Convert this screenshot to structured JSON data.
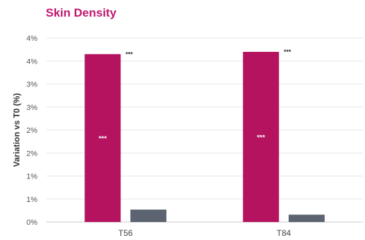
{
  "chart_data": {
    "type": "bar",
    "title": "Skin Density",
    "ylabel": "Variation vs T0 (%)",
    "xlabel": "",
    "categories": [
      "T56",
      "T84"
    ],
    "ylim": [
      0,
      4.0
    ],
    "y_tick_labels": [
      "0%",
      "1%",
      "1%",
      "2%",
      "2%",
      "3%",
      "3%",
      "4%",
      "4%"
    ],
    "grid": true,
    "legend": "none",
    "series": [
      {
        "color": "#b5135f",
        "values": [
          3.65,
          3.7
        ],
        "inner_labels": [
          "***",
          "***"
        ],
        "outer_labels": [
          "***",
          "***"
        ]
      },
      {
        "color": "#5b6470",
        "values": [
          0.27,
          0.16
        ],
        "inner_labels": [
          "",
          ""
        ],
        "outer_labels": [
          "",
          ""
        ]
      }
    ]
  }
}
